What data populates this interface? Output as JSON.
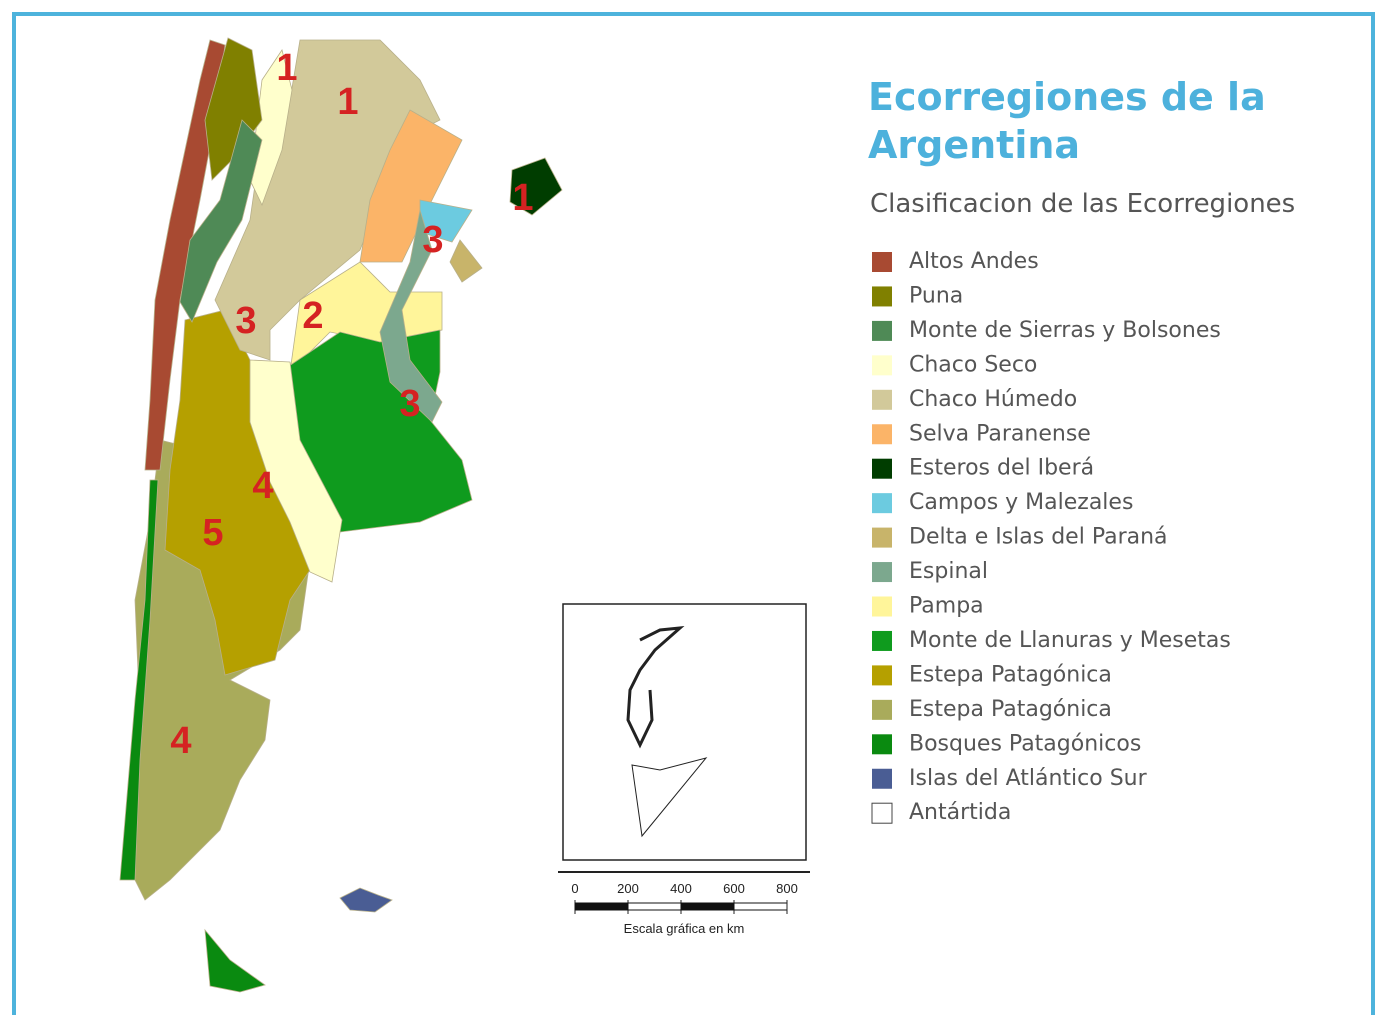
{
  "title_lines": [
    "Ecorregiones de la",
    "Argentina"
  ],
  "subtitle": "Clasificacion de las Ecorregiones",
  "legend": [
    {
      "label": "Altos Andes",
      "color": "#a84a32"
    },
    {
      "label": "Puna",
      "color": "#808000"
    },
    {
      "label": "Monte de Sierras y Bolsones",
      "color": "#4f8a56"
    },
    {
      "label": "Chaco Seco",
      "color": "#ffffcc"
    },
    {
      "label": "Chaco Húmedo",
      "color": "#d2c99a"
    },
    {
      "label": "Selva Paranense",
      "color": "#fbb468"
    },
    {
      "label": "Esteros del Iberá",
      "color": "#003d00"
    },
    {
      "label": "Campos y Malezales",
      "color": "#6ccbe0"
    },
    {
      "label": "Delta e Islas del Paraná",
      "color": "#c8b46a"
    },
    {
      "label": "Espinal",
      "color": "#7ca88e"
    },
    {
      "label": "Pampa",
      "color": "#fff59a"
    },
    {
      "label": "Monte de Llanuras y Mesetas",
      "color": "#0f9b1e"
    },
    {
      "label": "Estepa Patagónica",
      "color": "#b5a000"
    },
    {
      "label": "Estepa Patagónica",
      "color": "#a9ab5b"
    },
    {
      "label": "Bosques Patagónicos",
      "color": "#0a8a10"
    },
    {
      "label": "Islas del Atlántico Sur",
      "color": "#4a5d94"
    },
    {
      "label": "Antártida",
      "color": "#ffffff"
    }
  ],
  "map_labels": [
    "1",
    "1",
    "1",
    "3",
    "3",
    "3",
    "2",
    "4",
    "4",
    "5"
  ],
  "scale": {
    "ticks": [
      0,
      200,
      400,
      600,
      800
    ],
    "caption": "Escala gráfica en km"
  }
}
